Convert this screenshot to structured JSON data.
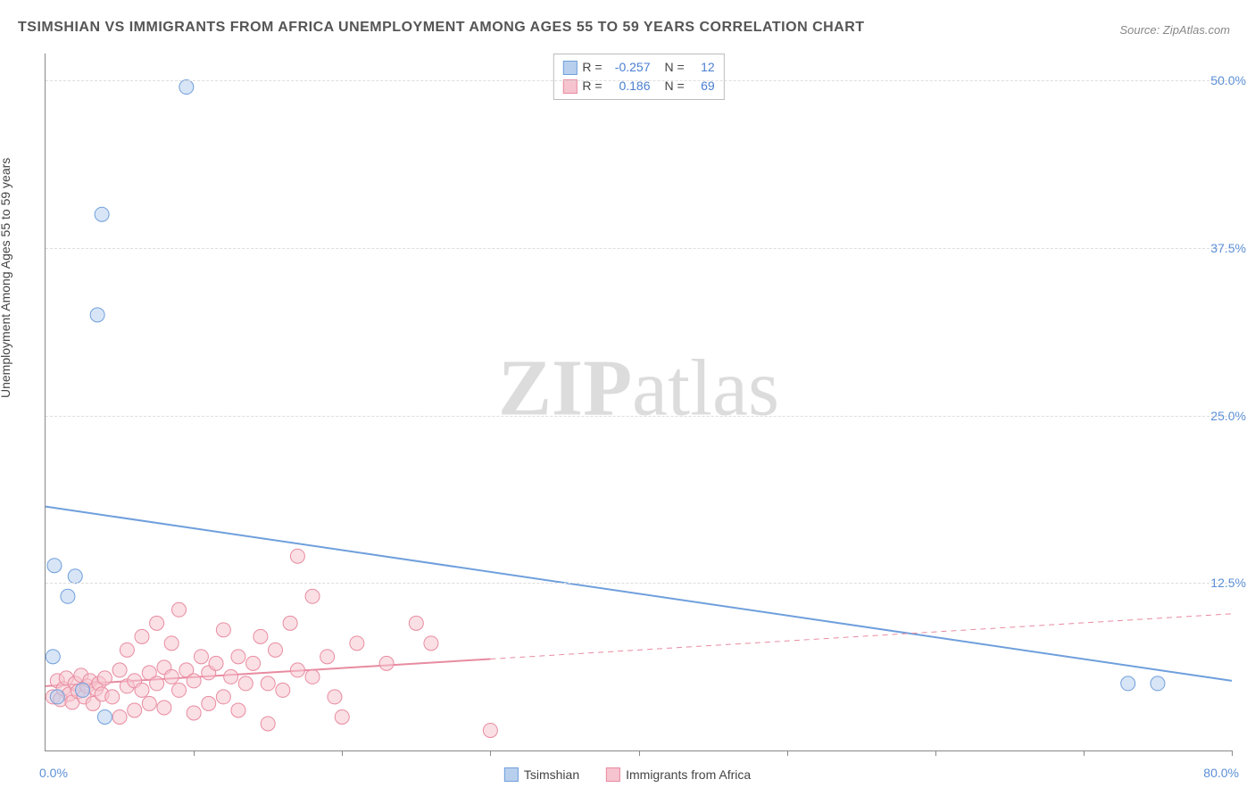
{
  "title": "TSIMSHIAN VS IMMIGRANTS FROM AFRICA UNEMPLOYMENT AMONG AGES 55 TO 59 YEARS CORRELATION CHART",
  "source": "Source: ZipAtlas.com",
  "y_axis_label": "Unemployment Among Ages 55 to 59 years",
  "watermark_bold": "ZIP",
  "watermark_rest": "atlas",
  "chart": {
    "type": "scatter",
    "xlim": [
      0,
      80
    ],
    "ylim": [
      0,
      52
    ],
    "x_origin_label": "0.0%",
    "x_max_label": "80.0%",
    "y_ticks": [
      {
        "value": 12.5,
        "label": "12.5%"
      },
      {
        "value": 25.0,
        "label": "25.0%"
      },
      {
        "value": 37.5,
        "label": "37.5%"
      },
      {
        "value": 50.0,
        "label": "50.0%"
      }
    ],
    "x_tick_values": [
      10,
      20,
      30,
      40,
      50,
      60,
      70,
      80
    ],
    "grid_color": "#dddddd",
    "background_color": "#ffffff",
    "marker_radius": 8,
    "marker_opacity": 0.55,
    "line_width": 2
  },
  "series": [
    {
      "name": "Tsimshian",
      "color_fill": "#b8d0ee",
      "color_stroke": "#6f9fdc",
      "r_value": "-0.257",
      "n_value": "12",
      "regression": {
        "x1": 0,
        "y1": 18.2,
        "x2": 80,
        "y2": 5.2,
        "solid_until_x": 80
      },
      "points": [
        {
          "x": 0.5,
          "y": 7.0
        },
        {
          "x": 0.6,
          "y": 13.8
        },
        {
          "x": 0.8,
          "y": 4.0
        },
        {
          "x": 1.5,
          "y": 11.5
        },
        {
          "x": 2.0,
          "y": 13.0
        },
        {
          "x": 2.5,
          "y": 4.5
        },
        {
          "x": 3.5,
          "y": 32.5
        },
        {
          "x": 3.8,
          "y": 40.0
        },
        {
          "x": 4.0,
          "y": 2.5
        },
        {
          "x": 9.5,
          "y": 49.5
        },
        {
          "x": 73.0,
          "y": 5.0
        },
        {
          "x": 75.0,
          "y": 5.0
        }
      ]
    },
    {
      "name": "Immigrants from Africa",
      "color_fill": "#f6c4ce",
      "color_stroke": "#e88ba0",
      "r_value": "0.186",
      "n_value": "69",
      "regression": {
        "x1": 0,
        "y1": 4.8,
        "x2": 80,
        "y2": 10.2,
        "solid_until_x": 30
      },
      "points": [
        {
          "x": 0.5,
          "y": 4.0
        },
        {
          "x": 0.8,
          "y": 5.2
        },
        {
          "x": 1.0,
          "y": 3.8
        },
        {
          "x": 1.2,
          "y": 4.6
        },
        {
          "x": 1.4,
          "y": 5.4
        },
        {
          "x": 1.6,
          "y": 4.2
        },
        {
          "x": 1.8,
          "y": 3.6
        },
        {
          "x": 2.0,
          "y": 5.0
        },
        {
          "x": 2.2,
          "y": 4.4
        },
        {
          "x": 2.4,
          "y": 5.6
        },
        {
          "x": 2.6,
          "y": 4.0
        },
        {
          "x": 2.8,
          "y": 4.8
        },
        {
          "x": 3.0,
          "y": 5.2
        },
        {
          "x": 3.2,
          "y": 3.5
        },
        {
          "x": 3.4,
          "y": 4.6
        },
        {
          "x": 3.6,
          "y": 5.0
        },
        {
          "x": 3.8,
          "y": 4.2
        },
        {
          "x": 4.0,
          "y": 5.4
        },
        {
          "x": 4.5,
          "y": 4.0
        },
        {
          "x": 5.0,
          "y": 6.0
        },
        {
          "x": 5.0,
          "y": 2.5
        },
        {
          "x": 5.5,
          "y": 4.8
        },
        {
          "x": 5.5,
          "y": 7.5
        },
        {
          "x": 6.0,
          "y": 5.2
        },
        {
          "x": 6.0,
          "y": 3.0
        },
        {
          "x": 6.5,
          "y": 4.5
        },
        {
          "x": 6.5,
          "y": 8.5
        },
        {
          "x": 7.0,
          "y": 5.8
        },
        {
          "x": 7.0,
          "y": 3.5
        },
        {
          "x": 7.5,
          "y": 9.5
        },
        {
          "x": 7.5,
          "y": 5.0
        },
        {
          "x": 8.0,
          "y": 6.2
        },
        {
          "x": 8.0,
          "y": 3.2
        },
        {
          "x": 8.5,
          "y": 5.5
        },
        {
          "x": 8.5,
          "y": 8.0
        },
        {
          "x": 9.0,
          "y": 4.5
        },
        {
          "x": 9.0,
          "y": 10.5
        },
        {
          "x": 9.5,
          "y": 6.0
        },
        {
          "x": 10.0,
          "y": 5.2
        },
        {
          "x": 10.0,
          "y": 2.8
        },
        {
          "x": 10.5,
          "y": 7.0
        },
        {
          "x": 11.0,
          "y": 5.8
        },
        {
          "x": 11.0,
          "y": 3.5
        },
        {
          "x": 11.5,
          "y": 6.5
        },
        {
          "x": 12.0,
          "y": 9.0
        },
        {
          "x": 12.0,
          "y": 4.0
        },
        {
          "x": 12.5,
          "y": 5.5
        },
        {
          "x": 13.0,
          "y": 7.0
        },
        {
          "x": 13.0,
          "y": 3.0
        },
        {
          "x": 13.5,
          "y": 5.0
        },
        {
          "x": 14.0,
          "y": 6.5
        },
        {
          "x": 14.5,
          "y": 8.5
        },
        {
          "x": 15.0,
          "y": 5.0
        },
        {
          "x": 15.0,
          "y": 2.0
        },
        {
          "x": 15.5,
          "y": 7.5
        },
        {
          "x": 16.0,
          "y": 4.5
        },
        {
          "x": 16.5,
          "y": 9.5
        },
        {
          "x": 17.0,
          "y": 14.5
        },
        {
          "x": 17.0,
          "y": 6.0
        },
        {
          "x": 18.0,
          "y": 5.5
        },
        {
          "x": 18.0,
          "y": 11.5
        },
        {
          "x": 19.0,
          "y": 7.0
        },
        {
          "x": 19.5,
          "y": 4.0
        },
        {
          "x": 20.0,
          "y": 2.5
        },
        {
          "x": 21.0,
          "y": 8.0
        },
        {
          "x": 23.0,
          "y": 6.5
        },
        {
          "x": 25.0,
          "y": 9.5
        },
        {
          "x": 26.0,
          "y": 8.0
        },
        {
          "x": 30.0,
          "y": 1.5
        }
      ]
    }
  ],
  "stats_labels": {
    "r": "R =",
    "n": "N ="
  },
  "legend": {
    "series1_label": "Tsimshian",
    "series2_label": "Immigrants from Africa"
  }
}
